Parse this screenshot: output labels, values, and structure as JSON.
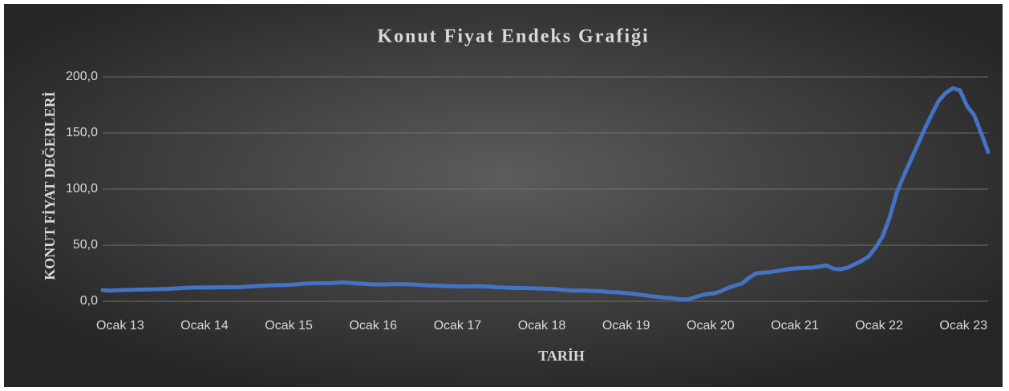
{
  "chart_data": {
    "type": "line",
    "title": "Konut Fiyat Endeks Grafiği",
    "xlabel": "TARİH",
    "ylabel": "KONUT FİYAT DEĞERLERİ",
    "categories": [
      "Ocak 13",
      null,
      null,
      null,
      null,
      null,
      null,
      null,
      null,
      null,
      null,
      null,
      "Ocak 14",
      null,
      null,
      null,
      null,
      null,
      null,
      null,
      null,
      null,
      null,
      null,
      "Ocak 15",
      null,
      null,
      null,
      null,
      null,
      null,
      null,
      null,
      null,
      null,
      null,
      "Ocak 16",
      null,
      null,
      null,
      null,
      null,
      null,
      null,
      null,
      null,
      null,
      null,
      "Ocak 17",
      null,
      null,
      null,
      null,
      null,
      null,
      null,
      null,
      null,
      null,
      null,
      "Ocak 18",
      null,
      null,
      null,
      null,
      null,
      null,
      null,
      null,
      null,
      null,
      null,
      "Ocak 19",
      null,
      null,
      null,
      null,
      null,
      null,
      null,
      null,
      null,
      null,
      null,
      "Ocak 20",
      null,
      null,
      null,
      null,
      null,
      null,
      null,
      null,
      null,
      null,
      null,
      "Ocak 21",
      null,
      null,
      null,
      null,
      null,
      null,
      null,
      null,
      null,
      null,
      null,
      "Ocak 22",
      null,
      null,
      null,
      null,
      null,
      null,
      null,
      null,
      null,
      null,
      null,
      "Ocak 23",
      null,
      null,
      null,
      null,
      null,
      null
    ],
    "values": [
      10,
      9.5,
      9.8,
      10,
      10.2,
      10.4,
      10.5,
      10.6,
      10.8,
      11,
      11.3,
      11.6,
      12,
      12.2,
      12.3,
      12.2,
      12.3,
      12.5,
      12.6,
      12.5,
      12.8,
      13.2,
      13.6,
      14,
      14.2,
      14.4,
      14.5,
      14.8,
      15.3,
      15.8,
      16,
      16.2,
      16,
      16.4,
      16.8,
      16.5,
      16,
      15.6,
      15.2,
      15,
      15,
      15.2,
      15.3,
      15.2,
      15,
      14.6,
      14.3,
      14,
      13.8,
      13.6,
      13.4,
      13.2,
      13.3,
      13.5,
      13.4,
      13,
      12.6,
      12.3,
      12,
      11.8,
      11.8,
      11.6,
      11.4,
      11.2,
      11,
      10.5,
      9.8,
      9.5,
      9.6,
      9.4,
      9.2,
      9,
      8.2,
      8,
      7.6,
      7,
      6.2,
      5.5,
      4.5,
      4,
      3.2,
      2.8,
      2,
      1.5,
      3,
      5,
      6.5,
      7,
      9,
      12,
      14,
      16,
      21,
      25,
      25.5,
      26,
      27,
      28,
      29,
      29.5,
      29.8,
      30,
      31,
      32,
      29,
      28.5,
      30,
      33,
      36,
      40,
      48,
      58,
      75,
      97,
      112,
      126,
      140,
      154,
      167,
      179,
      186,
      190,
      188,
      174,
      166,
      150,
      133
    ],
    "color": "#4472c4",
    "ylim": [
      0,
      200
    ],
    "yticks": [
      {
        "value": 0,
        "label": "0,0"
      },
      {
        "value": 50,
        "label": "50,0"
      },
      {
        "value": 100,
        "label": "100,0"
      },
      {
        "value": 150,
        "label": "150,0"
      },
      {
        "value": 200,
        "label": "200,0"
      }
    ],
    "grid": true
  }
}
